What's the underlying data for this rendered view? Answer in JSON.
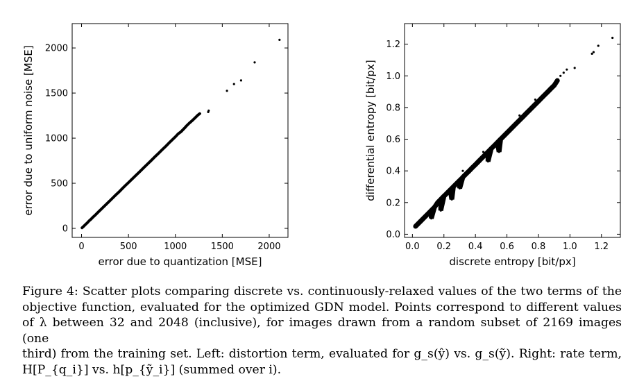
{
  "chart_data": [
    {
      "type": "scatter",
      "title": "",
      "xlabel": "error due to quantization [MSE]",
      "ylabel": "error due to uniform noise [MSE]",
      "xlim": [
        -100,
        2200
      ],
      "ylim": [
        -100,
        2270
      ],
      "xticks": [
        0,
        500,
        1000,
        1500,
        2000
      ],
      "yticks": [
        0,
        500,
        1000,
        1500,
        2000
      ],
      "xtick_labels": [
        "0",
        "500",
        "1000",
        "1500",
        "2000"
      ],
      "ytick_labels": [
        "0",
        "500",
        "1000",
        "1500",
        "2000"
      ],
      "grid": false,
      "marker_color": "#000000",
      "points": [
        [
          5,
          6
        ],
        [
          20,
          20
        ],
        [
          40,
          41
        ],
        [
          60,
          60
        ],
        [
          80,
          82
        ],
        [
          100,
          101
        ],
        [
          120,
          122
        ],
        [
          150,
          152
        ],
        [
          180,
          183
        ],
        [
          210,
          213
        ],
        [
          240,
          244
        ],
        [
          270,
          274
        ],
        [
          300,
          304
        ],
        [
          330,
          335
        ],
        [
          360,
          366
        ],
        [
          400,
          405
        ],
        [
          430,
          437
        ],
        [
          460,
          468
        ],
        [
          500,
          507
        ],
        [
          540,
          548
        ],
        [
          580,
          588
        ],
        [
          620,
          629
        ],
        [
          660,
          670
        ],
        [
          700,
          710
        ],
        [
          740,
          750
        ],
        [
          780,
          792
        ],
        [
          820,
          832
        ],
        [
          860,
          873
        ],
        [
          900,
          913
        ],
        [
          940,
          955
        ],
        [
          980,
          995
        ],
        [
          1000,
          1015
        ],
        [
          1030,
          1048
        ],
        [
          1060,
          1072
        ],
        [
          1100,
          1115
        ],
        [
          1120,
          1138
        ],
        [
          1150,
          1168
        ],
        [
          1180,
          1195
        ],
        [
          1210,
          1225
        ],
        [
          1240,
          1256
        ],
        [
          1260,
          1272
        ],
        [
          1350,
          1290
        ],
        [
          1355,
          1305
        ],
        [
          1550,
          1525
        ],
        [
          1625,
          1600
        ],
        [
          1700,
          1640
        ],
        [
          1845,
          1840
        ],
        [
          2110,
          2090
        ]
      ]
    },
    {
      "type": "scatter",
      "title": "",
      "xlabel": "discrete entropy [bit/px]",
      "ylabel": "differential entropy [bit/px]",
      "xlim": [
        -0.05,
        1.32
      ],
      "ylim": [
        -0.02,
        1.33
      ],
      "xticks": [
        0.0,
        0.2,
        0.4,
        0.6,
        0.8,
        1.0,
        1.2
      ],
      "yticks": [
        0.0,
        0.2,
        0.4,
        0.6,
        0.8,
        1.0,
        1.2
      ],
      "xtick_labels": [
        "0.0",
        "0.2",
        "0.4",
        "0.6",
        "0.8",
        "1.0",
        "1.2"
      ],
      "ytick_labels": [
        "0.0",
        "0.2",
        "0.4",
        "0.6",
        "0.8",
        "1.0",
        "1.2"
      ],
      "grid": false,
      "marker_color": "#000000",
      "points": [
        [
          0.02,
          0.05
        ],
        [
          0.04,
          0.07
        ],
        [
          0.06,
          0.09
        ],
        [
          0.08,
          0.11
        ],
        [
          0.1,
          0.13
        ],
        [
          0.12,
          0.15
        ],
        [
          0.14,
          0.17
        ],
        [
          0.16,
          0.2
        ],
        [
          0.18,
          0.22
        ],
        [
          0.2,
          0.24
        ],
        [
          0.22,
          0.26
        ],
        [
          0.24,
          0.28
        ],
        [
          0.26,
          0.3
        ],
        [
          0.28,
          0.32
        ],
        [
          0.3,
          0.34
        ],
        [
          0.32,
          0.36
        ],
        [
          0.34,
          0.38
        ],
        [
          0.36,
          0.4
        ],
        [
          0.38,
          0.42
        ],
        [
          0.4,
          0.44
        ],
        [
          0.42,
          0.46
        ],
        [
          0.44,
          0.48
        ],
        [
          0.46,
          0.5
        ],
        [
          0.48,
          0.52
        ],
        [
          0.5,
          0.54
        ],
        [
          0.52,
          0.56
        ],
        [
          0.54,
          0.58
        ],
        [
          0.56,
          0.6
        ],
        [
          0.58,
          0.62
        ],
        [
          0.6,
          0.64
        ],
        [
          0.62,
          0.66
        ],
        [
          0.64,
          0.68
        ],
        [
          0.66,
          0.7
        ],
        [
          0.68,
          0.72
        ],
        [
          0.7,
          0.74
        ],
        [
          0.72,
          0.76
        ],
        [
          0.74,
          0.78
        ],
        [
          0.76,
          0.8
        ],
        [
          0.78,
          0.82
        ],
        [
          0.8,
          0.84
        ],
        [
          0.82,
          0.86
        ],
        [
          0.84,
          0.88
        ],
        [
          0.86,
          0.9
        ],
        [
          0.88,
          0.92
        ],
        [
          0.9,
          0.94
        ],
        [
          0.92,
          0.97
        ],
        [
          0.94,
          1.0
        ],
        [
          0.96,
          1.02
        ],
        [
          0.98,
          1.04
        ],
        [
          1.03,
          1.05
        ],
        [
          1.14,
          1.14
        ],
        [
          1.15,
          1.15
        ],
        [
          1.18,
          1.19
        ],
        [
          1.27,
          1.24
        ],
        [
          0.12,
          0.1
        ],
        [
          0.18,
          0.15
        ],
        [
          0.25,
          0.22
        ],
        [
          0.3,
          0.29
        ],
        [
          0.55,
          0.52
        ],
        [
          0.32,
          0.4
        ],
        [
          0.45,
          0.52
        ],
        [
          0.68,
          0.75
        ],
        [
          0.78,
          0.85
        ],
        [
          0.48,
          0.46
        ]
      ]
    }
  ],
  "caption": {
    "lines": [
      "Figure 4: Scatter plots comparing discrete vs. continuously-relaxed values of the two terms of the",
      "objective function, evaluated for the optimized GDN model. Points correspond to different values",
      "of λ between 32 and 2048 (inclusive), for images drawn from a random subset of 2169 images (one",
      "third) from the training set. Left: distortion term, evaluated for g_s(ŷ) vs. g_s(ỹ). Right: rate term,",
      "H[P_{q_i}] vs. h[p_{ỹ_i}] (summed over i)."
    ]
  }
}
